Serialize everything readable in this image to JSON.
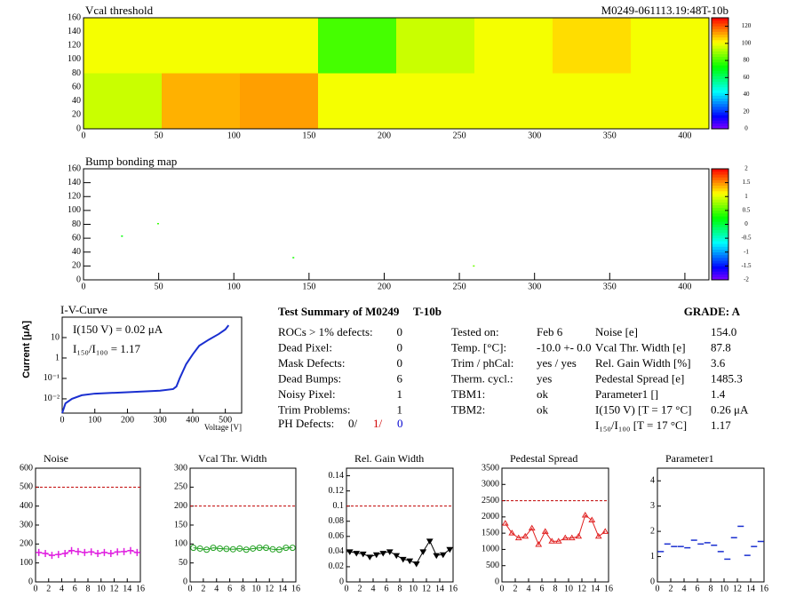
{
  "chart_data": [
    {
      "type": "heatmap",
      "title": "Vcal threshold",
      "subtitle": "M0249-061113.19:48T-10b",
      "x_edges": [
        0,
        52,
        104,
        156,
        208,
        260,
        312,
        364,
        416
      ],
      "y_edges": [
        0,
        80,
        160
      ],
      "values": [
        [
          95,
          110,
          112,
          100,
          100,
          100,
          100,
          100
        ],
        [
          100,
          100,
          100,
          80,
          95,
          100,
          105,
          100
        ]
      ],
      "xlim": [
        0,
        416
      ],
      "ylim": [
        0,
        160
      ],
      "xticks": [
        0,
        50,
        100,
        150,
        200,
        250,
        300,
        350,
        400
      ],
      "yticks": [
        0,
        20,
        40,
        60,
        80,
        100,
        120,
        140,
        160
      ],
      "zlim": [
        0,
        130
      ],
      "zticks": [
        0,
        20,
        40,
        60,
        80,
        100,
        120
      ]
    },
    {
      "type": "points2d",
      "title": "Bump bonding map",
      "x": [
        25,
        49,
        139,
        259
      ],
      "y": [
        62,
        80,
        31,
        19
      ],
      "z": [
        0.2,
        0.4,
        0.3,
        0.6
      ],
      "xlim": [
        0,
        416
      ],
      "ylim": [
        0,
        160
      ],
      "xticks": [
        0,
        50,
        100,
        150,
        200,
        250,
        300,
        350,
        400
      ],
      "yticks": [
        0,
        20,
        40,
        60,
        80,
        100,
        120,
        140,
        160
      ],
      "zlim": [
        -2,
        2
      ],
      "zticks": [
        -2,
        -1.5,
        -1,
        -0.5,
        0,
        0.5,
        1,
        1.5,
        2
      ]
    },
    {
      "type": "line",
      "title": "I-V-Curve",
      "x_label": "Voltage [V]",
      "y_label": "Current [μA]",
      "annotations": [
        "I(150 V) = 0.02 μA",
        "I₁₅₀/I₁₀₀ =  1.17"
      ],
      "log_y": true,
      "color": "#1a2fd0",
      "x": [
        0,
        10,
        30,
        60,
        100,
        200,
        300,
        340,
        350,
        360,
        380,
        400,
        420,
        450,
        480,
        500,
        510
      ],
      "y": [
        0.002,
        0.006,
        0.01,
        0.015,
        0.018,
        0.021,
        0.025,
        0.03,
        0.04,
        0.1,
        0.5,
        1.5,
        4,
        8,
        15,
        25,
        40
      ],
      "xlim": [
        0,
        550
      ],
      "ylim": [
        0.002,
        100
      ],
      "xticks": [
        0,
        100,
        200,
        300,
        400,
        500
      ],
      "yticks": [
        {
          "value": 0.01,
          "label": "10⁻²"
        },
        {
          "value": 0.1,
          "label": "10⁻¹"
        },
        1,
        10
      ]
    },
    {
      "type": "scatter",
      "title": "Noise",
      "marker": "cross",
      "line": true,
      "color": "#e020e0",
      "ref": 500,
      "x": [
        0.5,
        1.5,
        2.5,
        3.5,
        4.5,
        5.5,
        6.5,
        7.5,
        8.5,
        9.5,
        10.5,
        11.5,
        12.5,
        13.5,
        14.5,
        15.5
      ],
      "values": [
        155,
        150,
        140,
        145,
        150,
        165,
        160,
        155,
        158,
        150,
        155,
        150,
        158,
        160,
        165,
        155
      ],
      "xlim": [
        0,
        16
      ],
      "ylim": [
        0,
        600
      ],
      "xticks": [
        0,
        2,
        4,
        6,
        8,
        10,
        12,
        14,
        16
      ],
      "yticks": [
        0,
        100,
        200,
        300,
        400,
        500,
        600
      ]
    },
    {
      "type": "scatter",
      "title": "Vcal Thr. Width",
      "marker": "circle",
      "line": true,
      "color": "#20a020",
      "ref": 200,
      "x": [
        0.5,
        1.5,
        2.5,
        3.5,
        4.5,
        5.5,
        6.5,
        7.5,
        8.5,
        9.5,
        10.5,
        11.5,
        12.5,
        13.5,
        14.5,
        15.5
      ],
      "values": [
        90,
        88,
        85,
        90,
        88,
        87,
        86,
        88,
        85,
        88,
        90,
        90,
        86,
        85,
        90,
        90
      ],
      "xlim": [
        0,
        16
      ],
      "ylim": [
        0,
        300
      ],
      "xticks": [
        0,
        2,
        4,
        6,
        8,
        10,
        12,
        14,
        16
      ],
      "yticks": [
        0,
        50,
        100,
        150,
        200,
        250,
        300
      ]
    },
    {
      "type": "scatter",
      "title": "Rel. Gain Width",
      "marker": "triangle-down",
      "line": true,
      "color": "#000000",
      "ref": 0.1,
      "x": [
        0.5,
        1.5,
        2.5,
        3.5,
        4.5,
        5.5,
        6.5,
        7.5,
        8.5,
        9.5,
        10.5,
        11.5,
        12.5,
        13.5,
        14.5,
        15.5
      ],
      "values": [
        0.04,
        0.038,
        0.037,
        0.033,
        0.036,
        0.038,
        0.04,
        0.035,
        0.03,
        0.028,
        0.024,
        0.04,
        0.054,
        0.035,
        0.036,
        0.043
      ],
      "xlim": [
        0,
        16
      ],
      "ylim": [
        0,
        0.15
      ],
      "xticks": [
        0,
        2,
        4,
        6,
        8,
        10,
        12,
        14,
        16
      ],
      "yticks": [
        0,
        0.02,
        0.04,
        0.06,
        0.08,
        0.1,
        0.12,
        0.14
      ]
    },
    {
      "type": "scatter",
      "title": "Pedestal Spread",
      "marker": "triangle-up",
      "line": true,
      "color": "#e02020",
      "ref": 2500,
      "x": [
        0.5,
        1.5,
        2.5,
        3.5,
        4.5,
        5.5,
        6.5,
        7.5,
        8.5,
        9.5,
        10.5,
        11.5,
        12.5,
        13.5,
        14.5,
        15.5
      ],
      "values": [
        1800,
        1500,
        1350,
        1400,
        1650,
        1150,
        1550,
        1250,
        1250,
        1350,
        1350,
        1400,
        2050,
        1900,
        1400,
        1550
      ],
      "xlim": [
        0,
        16
      ],
      "ylim": [
        0,
        3500
      ],
      "xticks": [
        0,
        2,
        4,
        6,
        8,
        10,
        12,
        14,
        16
      ],
      "yticks": [
        0,
        500,
        1000,
        1500,
        2000,
        2500,
        3000,
        3500
      ]
    },
    {
      "type": "scatter",
      "title": "Parameter1",
      "marker": "dash",
      "line": false,
      "color": "#1a2fd0",
      "x": [
        0.5,
        1.5,
        2.5,
        3.5,
        4.5,
        5.5,
        6.5,
        7.5,
        8.5,
        9.5,
        10.5,
        11.5,
        12.5,
        13.5,
        14.5,
        15.5
      ],
      "values": [
        1.2,
        1.5,
        1.4,
        1.4,
        1.35,
        1.65,
        1.5,
        1.55,
        1.45,
        1.2,
        0.9,
        1.75,
        2.2,
        1.05,
        1.4,
        1.6
      ],
      "xlim": [
        0,
        16
      ],
      "ylim": [
        0,
        4.5
      ],
      "xticks": [
        0,
        2,
        4,
        6,
        8,
        10,
        12,
        14,
        16
      ],
      "yticks": [
        0,
        1,
        2,
        3,
        4
      ]
    }
  ],
  "summary": {
    "title": "Test Summary of M0249",
    "tag": "T-10b",
    "grade": "GRADE:  A",
    "left": [
      [
        "ROCs > 1% defects:",
        "0"
      ],
      [
        "Dead Pixel:",
        "0"
      ],
      [
        "Mask Defects:",
        "0"
      ],
      [
        "Dead Bumps:",
        "6"
      ],
      [
        "Noisy Pixel:",
        "1"
      ],
      [
        "Trim Problems:",
        "1"
      ]
    ],
    "ph_label": "PH Defects:",
    "ph_values": [
      "0/",
      "1/",
      "0"
    ],
    "mid": [
      [
        "Tested on:",
        "Feb 6"
      ],
      [
        "Temp. [°C]:",
        "-10.0 +- 0.0"
      ],
      [
        "Trim / phCal:",
        "yes / yes"
      ],
      [
        "Therm. cycl.:",
        "yes"
      ],
      [
        "TBM1:",
        "ok"
      ],
      [
        "TBM2:",
        "ok"
      ]
    ],
    "right": [
      [
        "Noise [e]",
        "154.0"
      ],
      [
        "Vcal Thr. Width [e]",
        "87.8"
      ],
      [
        "Rel. Gain Width [%]",
        "3.6"
      ],
      [
        "Pedestal Spread [e]",
        "1485.3"
      ],
      [
        "Parameter1 []",
        "1.4"
      ],
      [
        "I(150 V) [T = 17 °C]",
        "0.26 μA"
      ],
      [
        "I₁₅₀/I₁₀₀  [T = 17 °C]",
        "1.17"
      ]
    ]
  }
}
